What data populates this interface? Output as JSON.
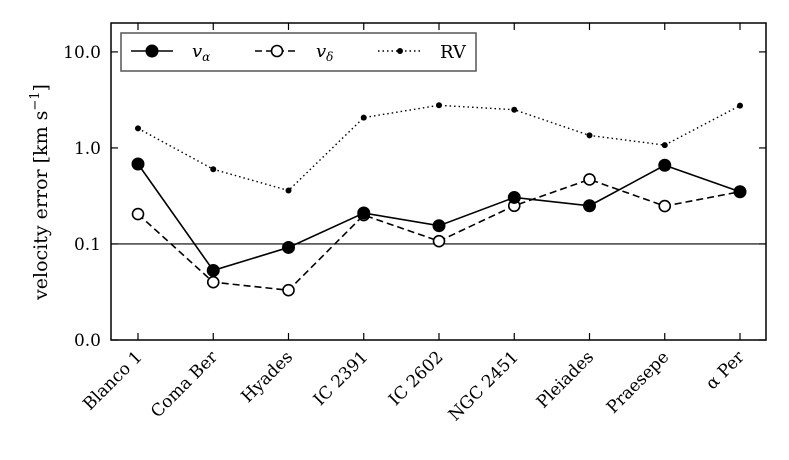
{
  "chart_data": {
    "type": "line",
    "yscale": "log",
    "title": "",
    "xlabel": "",
    "ylabel": "velocity error [km s",
    "ylabel_sup": "−1",
    "ylabel_close": "]",
    "ylim": [
      0.01,
      20
    ],
    "yticks": [
      {
        "value": 0.01,
        "label": "0.0"
      },
      {
        "value": 0.1,
        "label": "0.1"
      },
      {
        "value": 1.0,
        "label": "1.0"
      },
      {
        "value": 10.0,
        "label": "10.0"
      }
    ],
    "reference_line": 0.1,
    "categories": [
      "Blanco 1",
      "Coma Ber",
      "Hyades",
      "IC 2391",
      "IC 2602",
      "NGC 2451",
      "Pleiades",
      "Praesepe",
      "α Per"
    ],
    "series": [
      {
        "name": "v_α",
        "label_main": "v",
        "label_sub": "α",
        "style": "solid-filled-large",
        "values": [
          0.68,
          0.053,
          0.092,
          0.21,
          0.155,
          0.305,
          0.25,
          0.66,
          0.35
        ]
      },
      {
        "name": "v_δ",
        "label_main": "v",
        "label_sub": "δ",
        "style": "dashed-open",
        "values": [
          0.205,
          0.04,
          0.033,
          0.2,
          0.107,
          0.25,
          0.47,
          0.248,
          0.35
        ]
      },
      {
        "name": "RV",
        "label_main": "RV",
        "label_sub": "",
        "style": "dotted-filled-small",
        "values": [
          1.6,
          0.6,
          0.36,
          2.07,
          2.78,
          2.5,
          1.35,
          1.07,
          2.76
        ]
      }
    ],
    "legend": "top-left",
    "grid": false
  }
}
